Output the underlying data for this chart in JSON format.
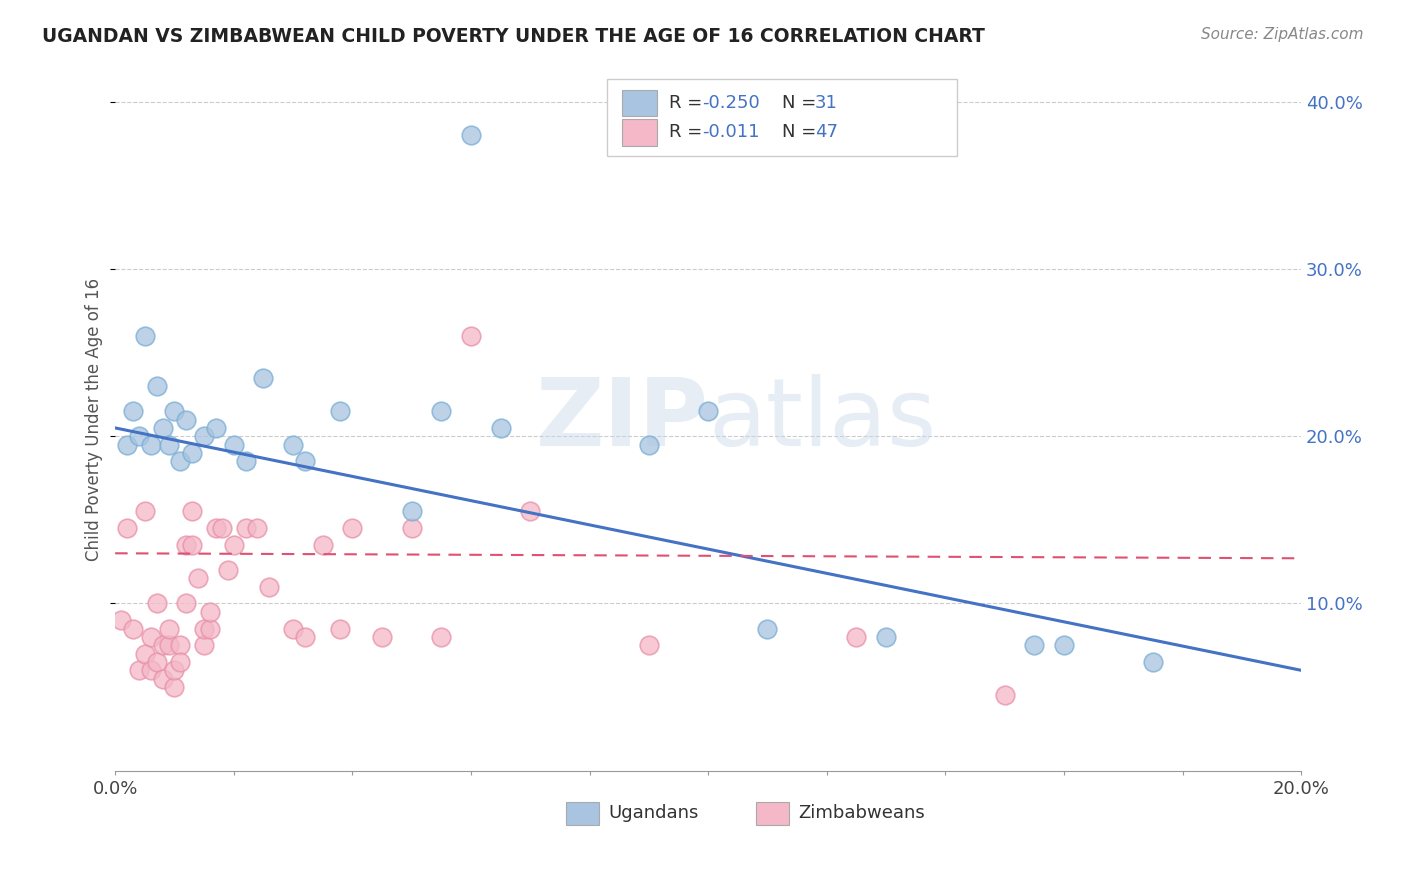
{
  "title": "UGANDAN VS ZIMBABWEAN CHILD POVERTY UNDER THE AGE OF 16 CORRELATION CHART",
  "source": "Source: ZipAtlas.com",
  "ylabel": "Child Poverty Under the Age of 16",
  "watermark_zip": "ZIP",
  "watermark_atlas": "atlas",
  "ugandan_color": "#a8c4e0",
  "ugandan_edge": "#7aaed4",
  "zimbabwean_color": "#f4b8c8",
  "zimbabwean_edge": "#e890a8",
  "trend_ugandan_color": "#4472c4",
  "trend_zimbabwean_color": "#e05070",
  "background_color": "#ffffff",
  "grid_color": "#cccccc",
  "ugandan_x": [
    0.002,
    0.003,
    0.004,
    0.005,
    0.006,
    0.007,
    0.008,
    0.009,
    0.01,
    0.011,
    0.012,
    0.013,
    0.015,
    0.017,
    0.02,
    0.022,
    0.025,
    0.03,
    0.032,
    0.038,
    0.05,
    0.055,
    0.06,
    0.065,
    0.09,
    0.1,
    0.11,
    0.13,
    0.155,
    0.16,
    0.175
  ],
  "ugandan_y": [
    0.195,
    0.215,
    0.2,
    0.26,
    0.195,
    0.23,
    0.205,
    0.195,
    0.215,
    0.185,
    0.21,
    0.19,
    0.2,
    0.205,
    0.195,
    0.185,
    0.235,
    0.195,
    0.185,
    0.215,
    0.155,
    0.215,
    0.38,
    0.205,
    0.195,
    0.215,
    0.085,
    0.08,
    0.075,
    0.075,
    0.065
  ],
  "zimbabwean_x": [
    0.001,
    0.002,
    0.003,
    0.004,
    0.005,
    0.005,
    0.006,
    0.006,
    0.007,
    0.007,
    0.008,
    0.008,
    0.009,
    0.009,
    0.01,
    0.01,
    0.011,
    0.011,
    0.012,
    0.012,
    0.013,
    0.013,
    0.014,
    0.015,
    0.015,
    0.016,
    0.016,
    0.017,
    0.018,
    0.019,
    0.02,
    0.022,
    0.024,
    0.026,
    0.03,
    0.032,
    0.035,
    0.038,
    0.04,
    0.045,
    0.05,
    0.055,
    0.06,
    0.07,
    0.09,
    0.125,
    0.15
  ],
  "zimbabwean_y": [
    0.09,
    0.145,
    0.085,
    0.06,
    0.07,
    0.155,
    0.06,
    0.08,
    0.065,
    0.1,
    0.055,
    0.075,
    0.075,
    0.085,
    0.05,
    0.06,
    0.075,
    0.065,
    0.135,
    0.1,
    0.135,
    0.155,
    0.115,
    0.075,
    0.085,
    0.085,
    0.095,
    0.145,
    0.145,
    0.12,
    0.135,
    0.145,
    0.145,
    0.11,
    0.085,
    0.08,
    0.135,
    0.085,
    0.145,
    0.08,
    0.145,
    0.08,
    0.26,
    0.155,
    0.075,
    0.08,
    0.045
  ],
  "ug_trend_x": [
    0.0,
    0.2
  ],
  "ug_trend_y": [
    0.205,
    0.06
  ],
  "zw_trend_x": [
    0.0,
    0.2
  ],
  "zw_trend_y": [
    0.13,
    0.127
  ],
  "xlim": [
    0.0,
    0.2
  ],
  "ylim": [
    0.0,
    0.42
  ],
  "ytick_positions": [
    0.1,
    0.2,
    0.3,
    0.4
  ],
  "ytick_labels": [
    "10.0%",
    "20.0%",
    "30.0%",
    "40.0%"
  ]
}
